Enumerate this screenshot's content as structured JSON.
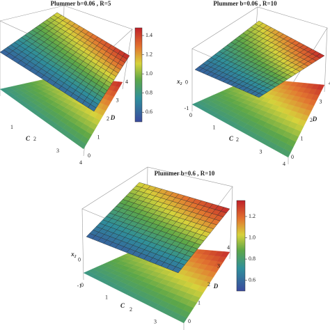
{
  "chart_data": [
    {
      "type": "surface3d",
      "title": "Plummer b=0.06 , R=5",
      "xlabel": "C",
      "ylabel": "D",
      "xlim": [
        0,
        4
      ],
      "xticks": [
        1,
        2,
        3,
        4
      ],
      "ylim": [
        0,
        4
      ],
      "yticks": [
        0,
        1,
        2,
        3,
        4
      ],
      "clim": [
        0.5,
        1.48
      ],
      "cticks": [
        {
          "value": 0.6,
          "label": "0.6"
        },
        {
          "value": 0.8,
          "label": "0.8"
        },
        {
          "value": 1,
          "label": "1.0"
        },
        {
          "value": 1.2,
          "label": "1.2"
        },
        {
          "value": 1.4,
          "label": "1.4"
        }
      ]
    },
    {
      "type": "surface3d",
      "title": "Plummer b=0.06 , R=10",
      "xlabel": "C",
      "ylabel": "D",
      "zlabel": "x₂",
      "xlim": [
        0,
        4
      ],
      "xticks": [
        0,
        1,
        2,
        3,
        4
      ],
      "ylim": [
        0,
        4
      ],
      "yticks": [
        0,
        1,
        2,
        3,
        4
      ],
      "zlim": [
        -1.5,
        0.5
      ],
      "zticks": [
        -1,
        0
      ]
    },
    {
      "type": "surface3d",
      "title": "Plummer b=0.6 , R=10",
      "xlabel": "C",
      "ylabel": "D",
      "zlabel": "x₂",
      "xlim": [
        0,
        4
      ],
      "xticks": [
        0,
        1,
        2,
        3,
        4
      ],
      "ylim": [
        0,
        4
      ],
      "yticks": [
        0,
        1,
        2,
        3,
        4
      ],
      "zlim": [
        -1.5,
        0.5
      ],
      "zticks": [
        -1,
        0
      ],
      "clim": [
        0.5,
        1.35
      ],
      "cticks": [
        {
          "value": 0.6,
          "label": "0.6"
        },
        {
          "value": 0.8,
          "label": "0.8"
        },
        {
          "value": 1,
          "label": "1.0"
        },
        {
          "value": 1.2,
          "label": "1.2"
        }
      ]
    }
  ]
}
